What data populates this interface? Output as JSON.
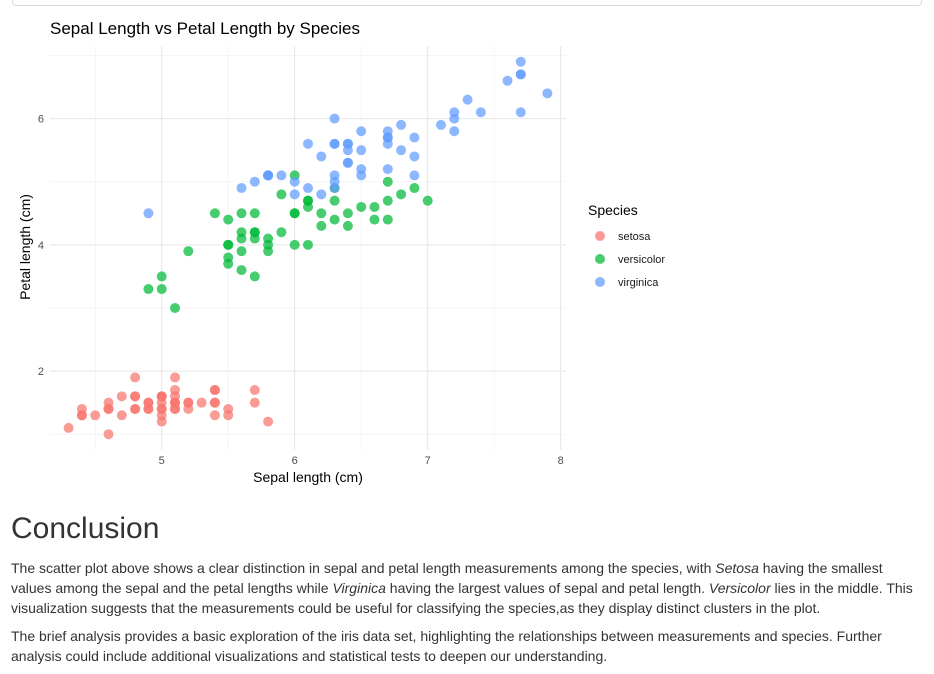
{
  "chart_data": {
    "type": "scatter",
    "title": "Sepal Length vs Petal Length by Species",
    "xlabel": "Sepal length (cm)",
    "ylabel": "Petal length (cm)",
    "xlim": [
      4.16,
      8.04
    ],
    "ylim": [
      0.75,
      7.15
    ],
    "x_ticks": [
      5,
      6,
      7,
      8
    ],
    "y_ticks": [
      2,
      4,
      6
    ],
    "grid": true,
    "legend": {
      "title": "Species",
      "position": "right"
    },
    "series": [
      {
        "name": "setosa",
        "color": "#F8766D",
        "points": [
          [
            5.1,
            1.4
          ],
          [
            4.9,
            1.4
          ],
          [
            4.7,
            1.3
          ],
          [
            4.6,
            1.5
          ],
          [
            5.0,
            1.4
          ],
          [
            5.4,
            1.7
          ],
          [
            4.6,
            1.4
          ],
          [
            5.0,
            1.5
          ],
          [
            4.4,
            1.4
          ],
          [
            4.9,
            1.5
          ],
          [
            5.4,
            1.5
          ],
          [
            4.8,
            1.6
          ],
          [
            4.8,
            1.4
          ],
          [
            4.3,
            1.1
          ],
          [
            5.8,
            1.2
          ],
          [
            5.7,
            1.5
          ],
          [
            5.4,
            1.3
          ],
          [
            5.1,
            1.4
          ],
          [
            5.7,
            1.7
          ],
          [
            5.1,
            1.5
          ],
          [
            5.4,
            1.7
          ],
          [
            5.1,
            1.5
          ],
          [
            4.6,
            1.0
          ],
          [
            5.1,
            1.7
          ],
          [
            4.8,
            1.9
          ],
          [
            5.0,
            1.6
          ],
          [
            5.0,
            1.6
          ],
          [
            5.2,
            1.5
          ],
          [
            5.2,
            1.4
          ],
          [
            4.7,
            1.6
          ],
          [
            4.8,
            1.6
          ],
          [
            5.4,
            1.5
          ],
          [
            5.2,
            1.5
          ],
          [
            5.5,
            1.4
          ],
          [
            4.9,
            1.5
          ],
          [
            5.0,
            1.2
          ],
          [
            5.5,
            1.3
          ],
          [
            4.9,
            1.4
          ],
          [
            4.4,
            1.3
          ],
          [
            5.1,
            1.5
          ],
          [
            5.0,
            1.3
          ],
          [
            4.5,
            1.3
          ],
          [
            4.4,
            1.3
          ],
          [
            5.0,
            1.6
          ],
          [
            5.1,
            1.9
          ],
          [
            4.8,
            1.4
          ],
          [
            5.1,
            1.6
          ],
          [
            4.6,
            1.4
          ],
          [
            5.3,
            1.5
          ],
          [
            5.0,
            1.4
          ]
        ]
      },
      {
        "name": "versicolor",
        "color": "#00BA38",
        "points": [
          [
            7.0,
            4.7
          ],
          [
            6.4,
            4.5
          ],
          [
            6.9,
            4.9
          ],
          [
            5.5,
            4.0
          ],
          [
            6.5,
            4.6
          ],
          [
            5.7,
            4.5
          ],
          [
            6.3,
            4.7
          ],
          [
            4.9,
            3.3
          ],
          [
            6.6,
            4.6
          ],
          [
            5.2,
            3.9
          ],
          [
            5.0,
            3.5
          ],
          [
            5.9,
            4.2
          ],
          [
            6.0,
            4.0
          ],
          [
            6.1,
            4.7
          ],
          [
            5.6,
            3.6
          ],
          [
            6.7,
            4.4
          ],
          [
            5.6,
            4.5
          ],
          [
            5.8,
            4.1
          ],
          [
            6.2,
            4.5
          ],
          [
            5.6,
            3.9
          ],
          [
            5.9,
            4.8
          ],
          [
            6.1,
            4.0
          ],
          [
            6.3,
            4.9
          ],
          [
            6.1,
            4.7
          ],
          [
            6.4,
            4.3
          ],
          [
            6.6,
            4.4
          ],
          [
            6.8,
            4.8
          ],
          [
            6.7,
            5.0
          ],
          [
            6.0,
            4.5
          ],
          [
            5.7,
            3.5
          ],
          [
            5.5,
            3.8
          ],
          [
            5.5,
            3.7
          ],
          [
            5.8,
            3.9
          ],
          [
            6.0,
            5.1
          ],
          [
            5.4,
            4.5
          ],
          [
            6.0,
            4.5
          ],
          [
            6.7,
            4.7
          ],
          [
            6.3,
            4.4
          ],
          [
            5.6,
            4.1
          ],
          [
            5.5,
            4.0
          ],
          [
            5.5,
            4.4
          ],
          [
            6.1,
            4.6
          ],
          [
            5.8,
            4.0
          ],
          [
            5.0,
            3.3
          ],
          [
            5.6,
            4.2
          ],
          [
            5.7,
            4.2
          ],
          [
            5.7,
            4.2
          ],
          [
            6.2,
            4.3
          ],
          [
            5.1,
            3.0
          ],
          [
            5.7,
            4.1
          ]
        ]
      },
      {
        "name": "virginica",
        "color": "#619CFF",
        "points": [
          [
            6.3,
            6.0
          ],
          [
            5.8,
            5.1
          ],
          [
            7.1,
            5.9
          ],
          [
            6.3,
            5.6
          ],
          [
            6.5,
            5.8
          ],
          [
            7.6,
            6.6
          ],
          [
            4.9,
            4.5
          ],
          [
            7.3,
            6.3
          ],
          [
            6.7,
            5.8
          ],
          [
            7.2,
            6.1
          ],
          [
            6.5,
            5.1
          ],
          [
            6.4,
            5.3
          ],
          [
            6.8,
            5.5
          ],
          [
            5.7,
            5.0
          ],
          [
            5.8,
            5.1
          ],
          [
            6.4,
            5.3
          ],
          [
            6.5,
            5.5
          ],
          [
            7.7,
            6.7
          ],
          [
            7.7,
            6.9
          ],
          [
            6.0,
            5.0
          ],
          [
            6.9,
            5.7
          ],
          [
            5.6,
            4.9
          ],
          [
            7.7,
            6.7
          ],
          [
            6.3,
            4.9
          ],
          [
            6.7,
            5.7
          ],
          [
            7.2,
            6.0
          ],
          [
            6.2,
            4.8
          ],
          [
            6.1,
            4.9
          ],
          [
            6.4,
            5.6
          ],
          [
            7.2,
            5.8
          ],
          [
            7.4,
            6.1
          ],
          [
            7.9,
            6.4
          ],
          [
            6.4,
            5.6
          ],
          [
            6.3,
            5.1
          ],
          [
            6.1,
            5.6
          ],
          [
            7.7,
            6.1
          ],
          [
            6.3,
            5.6
          ],
          [
            6.4,
            5.5
          ],
          [
            6.0,
            4.8
          ],
          [
            6.9,
            5.4
          ],
          [
            6.7,
            5.6
          ],
          [
            6.9,
            5.1
          ],
          [
            5.8,
            5.1
          ],
          [
            6.8,
            5.9
          ],
          [
            6.7,
            5.7
          ],
          [
            6.7,
            5.2
          ],
          [
            6.3,
            5.0
          ],
          [
            6.5,
            5.2
          ],
          [
            6.2,
            5.4
          ],
          [
            5.9,
            5.1
          ]
        ]
      }
    ]
  },
  "conclusion": {
    "heading": "Conclusion",
    "p1_a": "The scatter plot above shows a clear distinction in sepal and petal length measurements among the species, with ",
    "p1_b": "Setosa",
    "p1_c": " having the smallest values among the sepal and the petal lengths while ",
    "p1_d": "Virginica",
    "p1_e": " having the largest values of sepal and petal length. ",
    "p1_f": "Versicolor",
    "p1_g": " lies in the middle. This visualization suggests that the measurements could be useful for classifying the species,as they display distinct clusters in the plot.",
    "p2": "The brief analysis provides a basic exploration of the iris data set, highlighting the relationships between measurements and species. Further analysis could include additional visualizations and statistical tests to deepen our understanding."
  }
}
